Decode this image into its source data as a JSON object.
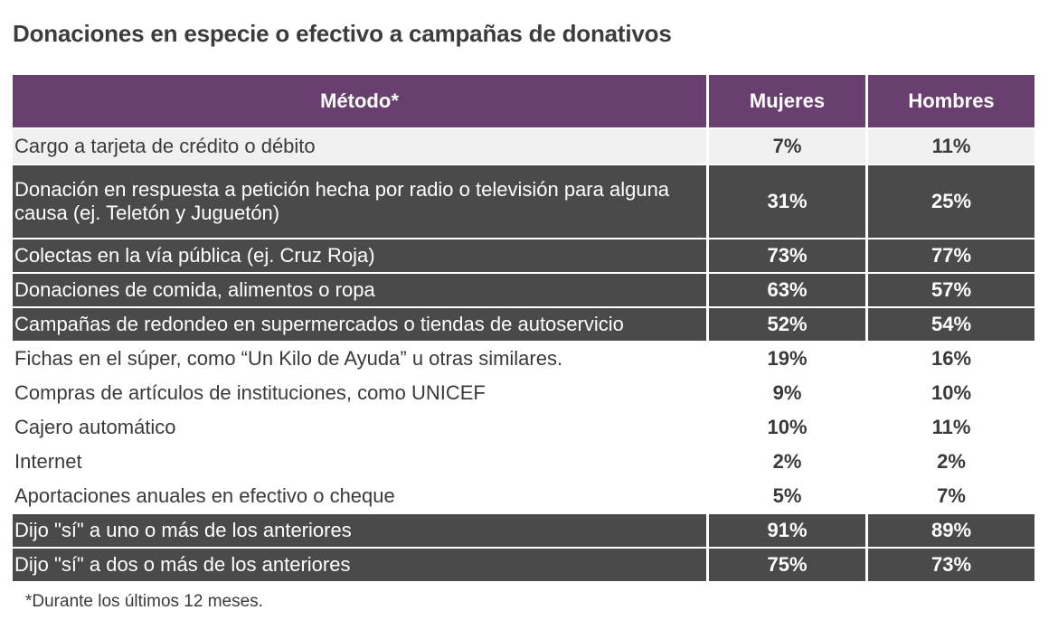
{
  "title": "Donaciones en especie o efectivo a campañas de donativos",
  "table": {
    "headers": [
      "Método*",
      "Mujeres",
      "Hombres"
    ],
    "rows": [
      {
        "method": "Cargo a tarjeta de crédito o débito",
        "mujeres": "7%",
        "hombres": "11%",
        "style": "light-gray"
      },
      {
        "method": "Donación en respuesta a petición hecha por radio o televisión para alguna causa (ej. Teletón y Juguetón)",
        "mujeres": "31%",
        "hombres": "25%",
        "style": "dark"
      },
      {
        "method": "Colectas en la vía pública (ej. Cruz Roja)",
        "mujeres": "73%",
        "hombres": "77%",
        "style": "dark"
      },
      {
        "method": "Donaciones de comida, alimentos o ropa",
        "mujeres": "63%",
        "hombres": "57%",
        "style": "dark"
      },
      {
        "method": "Campañas de redondeo en supermercados o tiendas de autoservicio",
        "mujeres": "52%",
        "hombres": "54%",
        "style": "dark"
      },
      {
        "method": "Fichas en el súper, como “Un Kilo de Ayuda” u otras similares.",
        "mujeres": "19%",
        "hombres": "16%",
        "style": "light"
      },
      {
        "method": "Compras de artículos de instituciones, como UNICEF",
        "mujeres": "9%",
        "hombres": "10%",
        "style": "light"
      },
      {
        "method": "Cajero automático",
        "mujeres": "10%",
        "hombres": "11%",
        "style": "light"
      },
      {
        "method": "Internet",
        "mujeres": "2%",
        "hombres": "2%",
        "style": "light"
      },
      {
        "method": "Aportaciones anuales en efectivo o cheque",
        "mujeres": "5%",
        "hombres": "7%",
        "style": "light"
      },
      {
        "method": "Dijo \"sí\" a uno o más de los anteriores",
        "mujeres": "91%",
        "hombres": "89%",
        "style": "dark"
      },
      {
        "method": "Dijo \"sí\" a dos o más de los anteriores",
        "mujeres": "75%",
        "hombres": "73%",
        "style": "dark"
      }
    ]
  },
  "footnote": "*Durante los últimos 12 meses."
}
